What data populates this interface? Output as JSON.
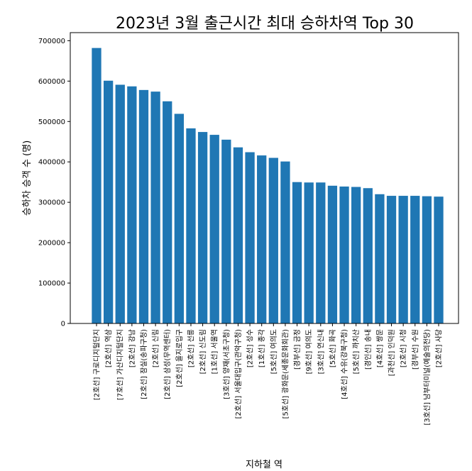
{
  "chart_data": {
    "type": "bar",
    "title": "2023년 3월 출근시간 최대 승하차역 Top 30",
    "xlabel": "지하철 역",
    "ylabel": "승하차 승객 수 (명)",
    "ylim": [
      0,
      720000
    ],
    "yticks": [
      0,
      100000,
      200000,
      300000,
      400000,
      500000,
      600000,
      700000
    ],
    "grid": false,
    "color": "#1f77b4",
    "categories": [
      "[2호선] 구로디지털단지",
      "[2호선] 역삼",
      "[7호선] 가산디지털단지",
      "[2호선] 강남",
      "[2호선] 잠실(송파구청)",
      "[2호선] 신림",
      "[2호선] 삼성(무역센터)",
      "[2호선] 을지로입구",
      "[2호선] 선릉",
      "[2호선] 신도림",
      "[1호선] 서울역",
      "[3호선] 양재(서초구청)",
      "[2호선] 서울대입구(관악구청)",
      "[2호선] 성수",
      "[1호선] 종각",
      "[5호선] 여의도",
      "[5호선] 광화문(세종문화회관)",
      "[경부선] 금정",
      "[9호선] 여의도",
      "[3호선] 연신내",
      "[5호선] 화곡",
      "[4호선] 수유(강북구청)",
      "[5호선] 까치산",
      "[경인선] 송내",
      "[4호선] 쌍문",
      "[과천선] 인덕원",
      "[2호선] 시청",
      "[경부선] 수원",
      "[3호선] 남부터미널(예술의전당)",
      "[2호선] 사당"
    ],
    "values": [
      682000,
      601000,
      591000,
      587000,
      578000,
      574000,
      550000,
      519000,
      483000,
      474000,
      467000,
      455000,
      436000,
      424000,
      416000,
      410000,
      401000,
      350000,
      349000,
      349000,
      341000,
      339000,
      338000,
      335000,
      320000,
      316000,
      316000,
      316000,
      315000,
      314000
    ]
  }
}
